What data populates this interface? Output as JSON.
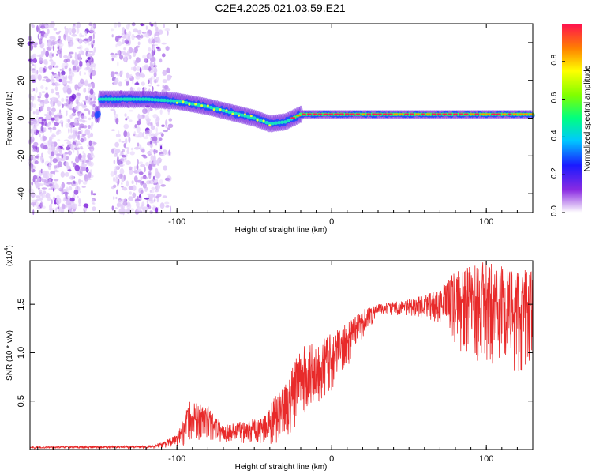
{
  "title": "C2E4.2025.021.03.59.E21",
  "chart_data": [
    {
      "type": "heatmap",
      "xlabel": "Height of straight line (km)",
      "ylabel": "Frequency (Hz)",
      "xlim": [
        -195,
        130
      ],
      "ylim": [
        -50,
        50
      ],
      "xticks": [
        -100,
        0,
        100
      ],
      "yticks": [
        -40,
        -20,
        0,
        20,
        40
      ],
      "colorbar": {
        "label": "Normalized spectral amplitude",
        "range": [
          0,
          1
        ],
        "ticks": [
          "0.0",
          "0.2",
          "0.4",
          "0.6",
          "0.8"
        ]
      },
      "ridge": [
        {
          "x": -150,
          "f": 10
        },
        {
          "x": -120,
          "f": 10
        },
        {
          "x": -100,
          "f": 9
        },
        {
          "x": -80,
          "f": 6
        },
        {
          "x": -60,
          "f": 2
        },
        {
          "x": -50,
          "f": 0
        },
        {
          "x": -40,
          "f": -3
        },
        {
          "x": -30,
          "f": -2
        },
        {
          "x": -20,
          "f": 2
        },
        {
          "x": 0,
          "f": 2
        },
        {
          "x": 50,
          "f": 2
        },
        {
          "x": 100,
          "f": 2
        },
        {
          "x": 130,
          "f": 2
        }
      ]
    },
    {
      "type": "line",
      "xlabel": "Height of straight line (km)",
      "ylabel": "SNR (10 * v/v)",
      "y_scale_label": "(x10",
      "y_scale_exp": "4",
      "xlim": [
        -195,
        130
      ],
      "ylim": [
        0,
        1.95
      ],
      "xticks": [
        -100,
        0,
        100
      ],
      "yticks": [
        "0.5",
        "1.0",
        "1.5"
      ],
      "series": [
        {
          "name": "SNR",
          "color": "#e82a2a",
          "envelope": [
            {
              "x": -195,
              "lo": 0.01,
              "hi": 0.03
            },
            {
              "x": -115,
              "lo": 0.01,
              "hi": 0.04
            },
            {
              "x": -100,
              "lo": 0.03,
              "hi": 0.15
            },
            {
              "x": -92,
              "lo": 0.05,
              "hi": 0.5
            },
            {
              "x": -80,
              "lo": 0.08,
              "hi": 0.45
            },
            {
              "x": -70,
              "lo": 0.08,
              "hi": 0.25
            },
            {
              "x": -45,
              "lo": 0.05,
              "hi": 0.35
            },
            {
              "x": -30,
              "lo": 0.05,
              "hi": 0.7
            },
            {
              "x": -20,
              "lo": 0.3,
              "hi": 1.05
            },
            {
              "x": 0,
              "lo": 0.6,
              "hi": 1.2
            },
            {
              "x": 10,
              "lo": 0.85,
              "hi": 1.3
            },
            {
              "x": 20,
              "lo": 1.15,
              "hi": 1.45
            },
            {
              "x": 30,
              "lo": 1.38,
              "hi": 1.5
            },
            {
              "x": 50,
              "lo": 1.38,
              "hi": 1.55
            },
            {
              "x": 70,
              "lo": 1.3,
              "hi": 1.65
            },
            {
              "x": 80,
              "lo": 1.05,
              "hi": 1.85
            },
            {
              "x": 100,
              "lo": 0.85,
              "hi": 1.95
            },
            {
              "x": 130,
              "lo": 0.75,
              "hi": 1.85
            }
          ]
        }
      ]
    }
  ]
}
